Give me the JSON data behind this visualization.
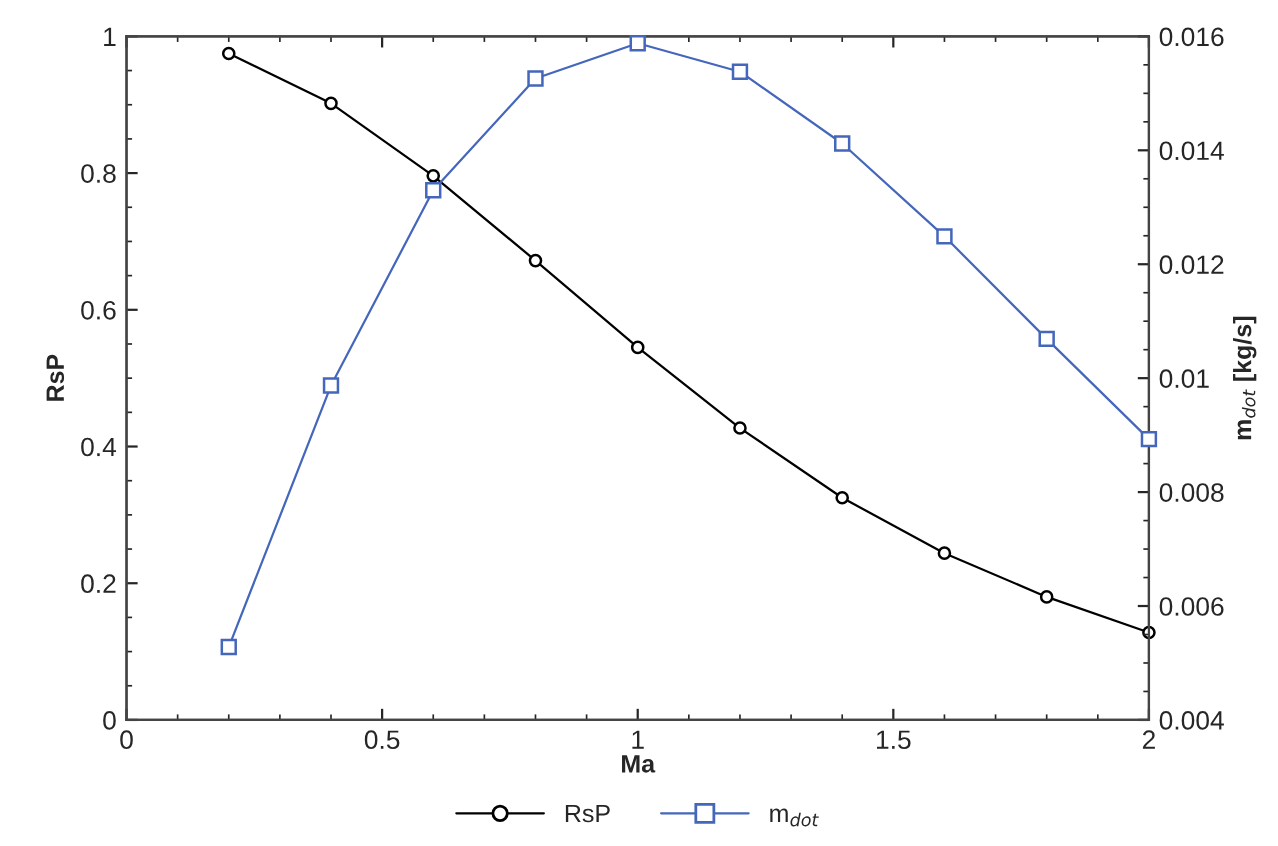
{
  "chart_data": {
    "type": "line",
    "xlabel": "Ma",
    "ylabel": "RsP",
    "y2label": "m$_{dot}$ [kg/s]",
    "x": [
      0.2,
      0.4,
      0.6,
      0.8,
      1.0,
      1.2,
      1.4,
      1.6,
      1.8,
      2.0
    ],
    "series": [
      {
        "name": "RsP",
        "color": "#000000",
        "marker": "circle",
        "values": [
          0.975,
          0.902,
          0.796,
          0.672,
          0.545,
          0.427,
          0.325,
          0.244,
          0.18,
          0.128
        ]
      },
      {
        "name": "m$_{dot}$",
        "color": "#4466bb",
        "marker": "square",
        "axis": "y2",
        "values": [
          0.00528,
          0.00987,
          0.0133,
          0.01526,
          0.01588,
          0.01538,
          0.01412,
          0.01249,
          0.01069,
          0.00893
        ]
      }
    ],
    "xlim": [
      0,
      2
    ],
    "xticks": [
      0,
      0.5,
      1,
      1.5,
      2
    ],
    "ylim": [
      0,
      1
    ],
    "yticks": [
      0,
      0.2,
      0.4,
      0.6,
      0.8,
      1
    ],
    "y2lim": [
      0.004,
      0.016
    ],
    "y2ticks": [
      0.004,
      0.006,
      0.008,
      0.01,
      0.012,
      0.014,
      0.016
    ],
    "grid": false,
    "legend": "bottom",
    "line_style": "solid"
  }
}
